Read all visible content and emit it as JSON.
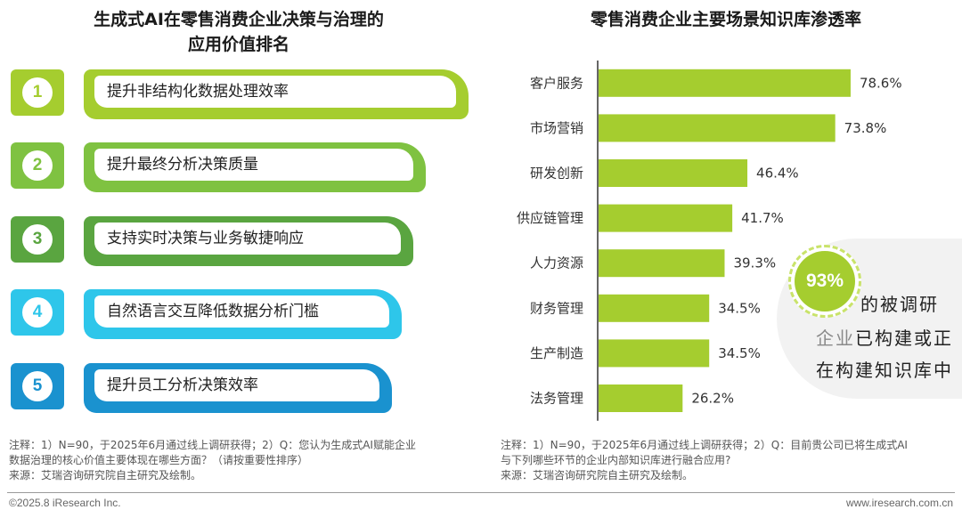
{
  "left": {
    "title_line1": "生成式AI在零售消费企业决策与治理的",
    "title_line2": "应用价值排名",
    "items": [
      {
        "rank": "1",
        "label": "提升非结构化数据处理效率",
        "color": "#a5cd2f"
      },
      {
        "rank": "2",
        "label": "提升最终分析决策质量",
        "color": "#7fc241"
      },
      {
        "rank": "3",
        "label": "支持实时决策与业务敏捷响应",
        "color": "#5aa540"
      },
      {
        "rank": "4",
        "label": "自然语言交互降低数据分析门槛",
        "color": "#2ec6ea"
      },
      {
        "rank": "5",
        "label": "提升员工分析决策效率",
        "color": "#1a92cf"
      }
    ]
  },
  "right": {
    "title": "零售消费企业主要场景知识库渗透率",
    "callout": {
      "value": "93%",
      "line1": "的被调研",
      "line2_light": "企业",
      "line2_dark": "已构建或正",
      "line3": "在构建知识库中"
    }
  },
  "chart_data": {
    "type": "bar",
    "orientation": "horizontal",
    "title": "零售消费企业主要场景知识库渗透率",
    "categories": [
      "客户服务",
      "市场营销",
      "研发创新",
      "供应链管理",
      "人力资源",
      "财务管理",
      "生产制造",
      "法务管理"
    ],
    "values": [
      78.6,
      73.8,
      46.4,
      41.7,
      39.3,
      34.5,
      34.5,
      26.2
    ],
    "value_labels": [
      "78.6%",
      "73.8%",
      "46.4%",
      "41.7%",
      "39.3%",
      "34.5%",
      "34.5%",
      "26.2%"
    ],
    "bar_color": "#a5cd2f",
    "xlim": [
      0,
      100
    ],
    "grid": false,
    "legend": "none"
  },
  "notes": {
    "left_line1": "注释：1）N=90，于2025年6月通过线上调研获得；2）Q：您认为生成式AI赋能企业",
    "left_line2": "数据治理的核心价值主要体现在哪些方面？（请按重要性排序）",
    "left_line3": "来源：艾瑞咨询研究院自主研究及绘制。",
    "right_line1": "注释：1）N=90，于2025年6月通过线上调研获得；2）Q：目前贵公司已将生成式AI",
    "right_line2": "与下列哪些环节的企业内部知识库进行融合应用?",
    "right_line3": "来源：艾瑞咨询研究院自主研究及绘制。"
  },
  "footer": {
    "copyright": "©2025.8 iResearch Inc.",
    "url": "www.iresearch.com.cn"
  }
}
